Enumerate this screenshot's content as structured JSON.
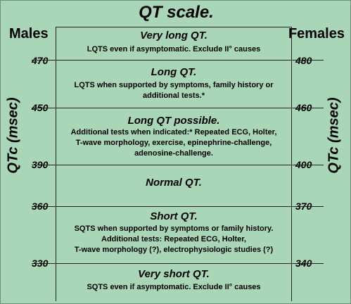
{
  "title": "QT scale.",
  "left_header": "Males",
  "right_header": "Females",
  "left_axis_label": "QTc (msec)",
  "right_axis_label": "QTc (msec)",
  "male_ticks": [
    "470",
    "450",
    "390",
    "360",
    "330"
  ],
  "female_ticks": [
    "480",
    "460",
    "400",
    "370",
    "340"
  ],
  "zones": [
    {
      "title": "Very long QT.",
      "lines": [
        "LQTS even if asymptomatic. Exclude II° causes"
      ]
    },
    {
      "title": "Long QT.",
      "lines": [
        "LQTS when supported by symptoms, family history or",
        "additional tests.*"
      ]
    },
    {
      "title": "Long QT possible.",
      "lines": [
        "Additional tests when indicated:* Repeated ECG, Holter,",
        "T-wave morphology, exercise, epinephrine-challenge,",
        "adenosine-challenge."
      ]
    },
    {
      "title": "Normal QT.",
      "lines": []
    },
    {
      "title": "Short QT.",
      "lines": [
        "SQTS when supported by symptoms or family history.",
        "Additional tests: Repeated ECG, Holter,",
        "T-wave morphology (?), electrophysiologic studies (?)"
      ]
    },
    {
      "title": "Very short QT.",
      "lines": [
        "SQTS even if asymptomatic. Exclude II° causes"
      ]
    }
  ]
}
